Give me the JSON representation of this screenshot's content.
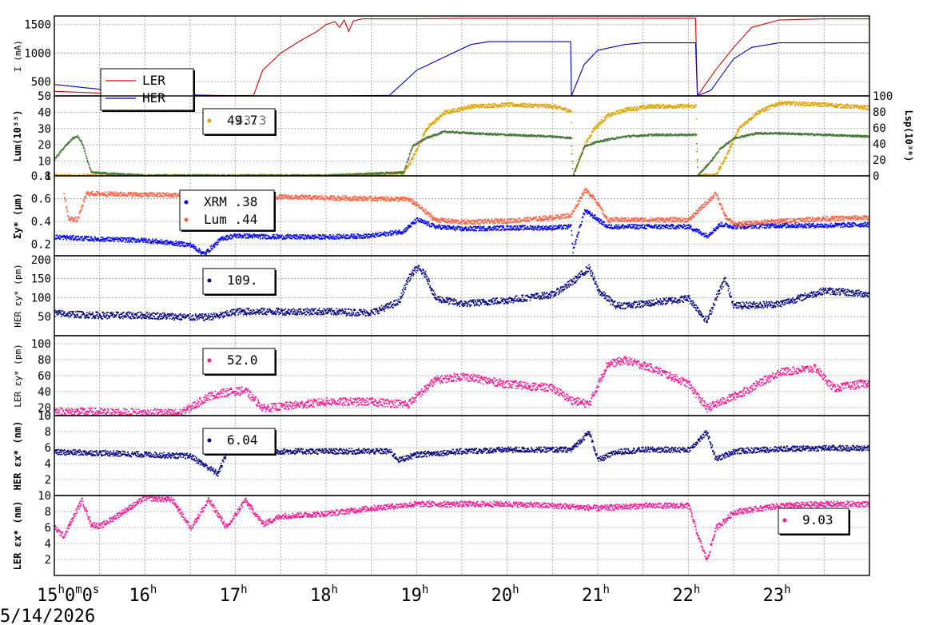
{
  "chart_data": [
    {
      "type": "line",
      "ylabel": "I (mA)",
      "ylim": [
        250,
        1650
      ],
      "yticks": [
        500,
        1000,
        1500
      ],
      "legend": {
        "placement": "bottom-left",
        "entries": [
          {
            "name": "LER",
            "color": "#cc0000",
            "style": "line"
          },
          {
            "name": "HER",
            "color": "#0000cc",
            "style": "line"
          }
        ]
      },
      "series": [
        {
          "name": "LER",
          "color": "#cc0000",
          "x": [
            15.0,
            15.5,
            16.0,
            16.4,
            16.7,
            17.0,
            17.2,
            17.3,
            17.5,
            17.7,
            17.9,
            18.0,
            18.1,
            18.15,
            18.2,
            18.25,
            18.3,
            18.4,
            18.5,
            18.7,
            19.0,
            19.5,
            20.0,
            21.0,
            22.0,
            22.08,
            22.1,
            22.3,
            22.5,
            22.7,
            23.0,
            23.5,
            24.0
          ],
          "y": [
            330,
            300,
            280,
            270,
            260,
            255,
            260,
            700,
            1000,
            1200,
            1380,
            1500,
            1550,
            1450,
            1580,
            1380,
            1560,
            1600,
            1600,
            1600,
            1600,
            1610,
            1610,
            1610,
            1610,
            1610,
            250,
            700,
            1100,
            1450,
            1580,
            1600,
            1600
          ]
        },
        {
          "name": "HER",
          "color": "#0000cc",
          "x": [
            15.0,
            15.3,
            15.6,
            16.0,
            16.3,
            16.7,
            17.0,
            18.0,
            18.7,
            18.9,
            19.0,
            19.2,
            19.4,
            19.6,
            19.8,
            20.0,
            20.5,
            20.7,
            20.71,
            20.85,
            21.0,
            21.3,
            21.5,
            22.0,
            22.08,
            22.1,
            22.25,
            22.5,
            22.7,
            23.0,
            23.5,
            24.0
          ],
          "y": [
            450,
            400,
            350,
            300,
            280,
            260,
            250,
            250,
            260,
            550,
            700,
            850,
            1000,
            1150,
            1200,
            1200,
            1200,
            1200,
            250,
            800,
            1050,
            1150,
            1180,
            1180,
            1180,
            250,
            350,
            900,
            1100,
            1180,
            1180,
            1180
          ]
        }
      ]
    },
    {
      "type": "line",
      "ylabel": "Lum(10³³)",
      "ylabel_right": "Lsp(10³⁰)",
      "ylim": [
        1,
        50
      ],
      "yticks": [
        1,
        10,
        20,
        30,
        40,
        50
      ],
      "ylim_right": [
        0,
        100
      ],
      "yticks_right": [
        0,
        20,
        40,
        60,
        80,
        100
      ],
      "legend": {
        "placement": "top-left",
        "entries": [
          {
            "name": "49.7",
            "color": "#e0a000",
            "style": "dot"
          }
        ]
      },
      "readouts": [
        "43.3"
      ],
      "series": [
        {
          "name": "Lum",
          "color": "#e0a000",
          "x": [
            15.0,
            16.0,
            18.0,
            18.85,
            18.95,
            19.1,
            19.3,
            19.6,
            20.0,
            20.5,
            20.7,
            20.72,
            20.85,
            20.95,
            21.1,
            21.3,
            21.6,
            22.0,
            22.08,
            22.1,
            22.3,
            22.4,
            22.55,
            22.75,
            23.0,
            23.5,
            24.0
          ],
          "y": [
            1.2,
            1.1,
            1.1,
            3,
            12,
            30,
            40,
            44,
            45,
            44,
            41,
            1,
            20,
            30,
            38,
            42,
            44,
            44,
            44,
            1,
            2,
            12,
            30,
            40,
            46,
            45,
            43
          ]
        },
        {
          "name": "Lsp",
          "color": "#4a7a3a",
          "x": [
            15.0,
            15.1,
            15.2,
            15.25,
            15.3,
            15.4,
            16.0,
            17.0,
            18.0,
            18.85,
            18.95,
            19.1,
            19.3,
            19.6,
            20.0,
            20.5,
            20.7,
            20.72,
            20.85,
            20.95,
            21.1,
            21.3,
            21.6,
            22.0,
            22.08,
            22.1,
            22.25,
            22.35,
            22.5,
            22.75,
            23.0,
            23.5,
            24.0
          ],
          "y": [
            22,
            36,
            48,
            50,
            42,
            5,
            1,
            1,
            1,
            5,
            38,
            48,
            56,
            54,
            52,
            50,
            48,
            1,
            38,
            42,
            46,
            50,
            52,
            52,
            52,
            1,
            20,
            35,
            48,
            54,
            54,
            52,
            50
          ]
        }
      ]
    },
    {
      "type": "scatter",
      "ylabel": "Σy* (μm)",
      "ylim": [
        0.1,
        0.8
      ],
      "yticks": [
        0.2,
        0.4,
        0.6,
        0.8
      ],
      "legend": {
        "placement": "top-left",
        "entries": [
          {
            "name": "XRM",
            "value": ".38",
            "color": "#0000ff",
            "style": "dot"
          },
          {
            "name": "Lum",
            "value": ".44",
            "color": "#ff6040",
            "style": "dot"
          }
        ]
      },
      "series": [
        {
          "name": "XRM",
          "color": "#0000ff",
          "x": [
            15.0,
            15.5,
            16.0,
            16.5,
            16.65,
            16.85,
            17.0,
            17.5,
            18.0,
            18.5,
            18.85,
            19.0,
            19.2,
            19.5,
            20.0,
            20.5,
            20.7,
            20.72,
            20.85,
            20.95,
            21.1,
            21.5,
            22.0,
            22.2,
            22.35,
            22.5,
            23.0,
            23.5,
            24.0
          ],
          "y": [
            0.27,
            0.25,
            0.24,
            0.2,
            0.12,
            0.26,
            0.28,
            0.27,
            0.27,
            0.28,
            0.32,
            0.42,
            0.36,
            0.34,
            0.35,
            0.35,
            0.36,
            0.15,
            0.5,
            0.45,
            0.36,
            0.36,
            0.36,
            0.28,
            0.38,
            0.36,
            0.37,
            0.37,
            0.38
          ]
        },
        {
          "name": "Lum",
          "color": "#ff6040",
          "x": [
            15.1,
            15.15,
            15.25,
            15.35,
            18.9,
            19.0,
            19.2,
            19.5,
            20.0,
            20.5,
            20.7,
            20.85,
            20.95,
            21.1,
            21.5,
            22.0,
            22.3,
            22.4,
            22.5,
            23.0,
            23.5,
            24.0
          ],
          "y": [
            0.65,
            0.43,
            0.42,
            0.65,
            0.6,
            0.55,
            0.42,
            0.4,
            0.41,
            0.44,
            0.46,
            0.68,
            0.62,
            0.42,
            0.42,
            0.42,
            0.65,
            0.45,
            0.38,
            0.41,
            0.43,
            0.44
          ]
        }
      ]
    },
    {
      "type": "scatter",
      "ylabel": "HER εy* (pm)",
      "ylim": [
        0,
        210
      ],
      "yticks": [
        50,
        100,
        150,
        200
      ],
      "legend": {
        "placement": "top-left",
        "entries": [
          {
            "name": "109.",
            "color": "#000080",
            "style": "dot"
          }
        ]
      },
      "series": [
        {
          "name": "HER εy*",
          "color": "#000080",
          "x": [
            15.0,
            15.5,
            16.0,
            16.5,
            16.65,
            16.85,
            17.0,
            17.5,
            18.0,
            18.5,
            18.8,
            18.9,
            19.0,
            19.1,
            19.2,
            19.5,
            20.0,
            20.5,
            20.7,
            20.9,
            21.0,
            21.2,
            21.5,
            22.0,
            22.2,
            22.3,
            22.4,
            22.5,
            23.0,
            23.5,
            24.0
          ],
          "y": [
            60,
            55,
            55,
            50,
            50,
            55,
            65,
            65,
            65,
            62,
            90,
            150,
            180,
            160,
            100,
            85,
            95,
            110,
            140,
            180,
            120,
            80,
            85,
            100,
            40,
            100,
            150,
            80,
            85,
            120,
            110
          ]
        }
      ]
    },
    {
      "type": "scatter",
      "ylabel": "LER εy* (pm)",
      "ylim": [
        10,
        110
      ],
      "yticks": [
        10,
        20,
        40,
        60,
        80,
        100
      ],
      "legend": {
        "placement": "top-left",
        "entries": [
          {
            "name": "52.0",
            "color": "#ff1493",
            "style": "dot"
          }
        ]
      },
      "series": [
        {
          "name": "LER εy*",
          "color": "#ff1493",
          "x": [
            15.0,
            15.5,
            16.0,
            16.4,
            16.7,
            16.9,
            17.1,
            17.3,
            17.5,
            18.0,
            18.5,
            18.9,
            19.2,
            19.5,
            20.0,
            20.5,
            20.7,
            20.9,
            21.1,
            21.3,
            21.6,
            22.0,
            22.2,
            22.4,
            22.6,
            23.0,
            23.4,
            23.6,
            24.0
          ],
          "y": [
            16,
            15,
            14,
            14,
            35,
            40,
            42,
            20,
            22,
            28,
            28,
            25,
            55,
            60,
            50,
            45,
            30,
            25,
            75,
            80,
            70,
            50,
            20,
            30,
            40,
            65,
            70,
            45,
            52
          ]
        }
      ]
    },
    {
      "type": "scatter",
      "ylabel": "HER εx* (nm)",
      "ylim": [
        0,
        10
      ],
      "yticks": [
        2,
        4,
        6,
        8,
        10
      ],
      "legend": {
        "placement": "top-left",
        "entries": [
          {
            "name": "6.04",
            "color": "#000080",
            "style": "dot"
          }
        ]
      },
      "series": [
        {
          "name": "HER εx*",
          "color": "#000080",
          "x": [
            15.0,
            15.5,
            16.0,
            16.5,
            16.8,
            16.9,
            17.0,
            17.5,
            18.0,
            18.7,
            18.8,
            19.0,
            19.5,
            20.0,
            20.7,
            20.9,
            21.0,
            21.2,
            21.5,
            22.0,
            22.2,
            22.3,
            22.5,
            23.0,
            23.5,
            24.0
          ],
          "y": [
            5.5,
            5.4,
            5.2,
            5.0,
            2.8,
            5.5,
            5.6,
            5.6,
            5.6,
            5.6,
            4.5,
            5.2,
            5.6,
            5.8,
            5.8,
            8.0,
            4.5,
            5.5,
            5.8,
            5.8,
            8.0,
            4.6,
            5.6,
            5.9,
            6.0,
            6.0
          ]
        }
      ]
    },
    {
      "type": "scatter",
      "ylabel": "LER εx* (nm)",
      "ylim": [
        0,
        10
      ],
      "yticks": [
        2,
        4,
        6,
        8,
        10
      ],
      "legend": {
        "placement": "bottom-right",
        "entries": [
          {
            "name": "9.03",
            "color": "#ff1493",
            "style": "dot"
          }
        ]
      },
      "series": [
        {
          "name": "LER εx*",
          "color": "#ff1493",
          "x": [
            15.0,
            15.1,
            15.3,
            15.4,
            15.5,
            16.0,
            16.3,
            16.5,
            16.7,
            16.9,
            17.1,
            17.3,
            17.5,
            18.0,
            18.5,
            19.0,
            19.5,
            20.0,
            20.5,
            21.0,
            21.5,
            22.0,
            22.1,
            22.2,
            22.3,
            22.5,
            23.0,
            23.5,
            24.0
          ],
          "y": [
            6,
            5,
            9.5,
            6.5,
            6.2,
            9.8,
            9.5,
            6,
            9.5,
            6,
            9.5,
            6.5,
            7.5,
            7.8,
            8.5,
            9,
            9,
            9,
            8.8,
            8.5,
            8.8,
            8.8,
            5,
            2,
            6,
            8,
            8.8,
            9,
            9
          ]
        }
      ]
    }
  ],
  "x_axis": {
    "range": [
      15.0,
      24.0
    ],
    "tick_labels": [
      {
        "value": 15,
        "label": "15",
        "sup": "h",
        "rest": "0",
        "rest_sup": "m",
        "rest2": "0",
        "rest2_sup": "s"
      },
      {
        "value": 16,
        "label": "16",
        "sup": "h"
      },
      {
        "value": 17,
        "label": "17",
        "sup": "h"
      },
      {
        "value": 18,
        "label": "18",
        "sup": "h"
      },
      {
        "value": 19,
        "label": "19",
        "sup": "h"
      },
      {
        "value": 20,
        "label": "20",
        "sup": "h"
      },
      {
        "value": 21,
        "label": "21",
        "sup": "h"
      },
      {
        "value": 22,
        "label": "22",
        "sup": "h"
      },
      {
        "value": 23,
        "label": "23",
        "sup": "h"
      }
    ],
    "date": "5/14/2026"
  }
}
